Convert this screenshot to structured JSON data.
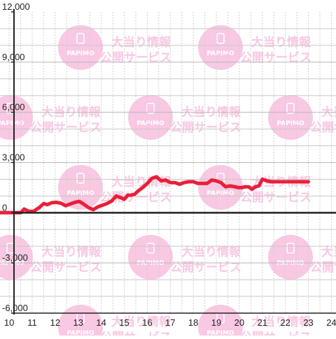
{
  "watermark": {
    "line1": "大当り情報",
    "line2": "公開サービス",
    "badge_text": "PAPIMO",
    "color": "#f9c8e2"
  },
  "colors": {
    "series": "#e8203a",
    "axis": "#222222",
    "grid_major": "#c8c8c8",
    "grid_minor": "#d0d0d0",
    "background": "#ffffff"
  },
  "chart_data": {
    "type": "line",
    "title": "",
    "xlabel": "",
    "ylabel": "",
    "xlim": [
      9.6,
      24.2
    ],
    "ylim": [
      -6000,
      12000
    ],
    "x_ticks": [
      10,
      11,
      12,
      13,
      14,
      15,
      16,
      17,
      18,
      19,
      20,
      21,
      22,
      23,
      24
    ],
    "x_tick_labels": [
      "10",
      "11",
      "12",
      "13",
      "14",
      "15",
      "16",
      "17",
      "18",
      "19",
      "20",
      "21",
      "22",
      "23",
      "24"
    ],
    "y_ticks": [
      -6000,
      -3000,
      0,
      3000,
      6000,
      9000,
      12000
    ],
    "y_tick_labels": [
      "-6,000",
      "-3,000",
      "0",
      "3,000",
      "6,000",
      "9,000",
      "12,000"
    ],
    "grid": true,
    "series": [
      {
        "x": [
          9.6,
          10.0,
          10.2,
          10.35,
          10.5,
          10.65,
          10.85,
          11.05,
          11.3,
          11.5,
          11.65,
          11.85,
          12.05,
          12.25,
          12.45,
          12.65,
          12.85,
          13.05,
          13.25,
          13.45,
          13.65,
          13.85,
          14.05,
          14.25,
          14.45,
          14.65,
          14.85,
          15.0,
          15.15,
          15.3,
          15.45,
          15.6,
          15.8,
          16.0,
          16.2,
          16.4,
          16.6,
          16.8,
          17.0,
          17.2,
          17.4,
          17.6,
          17.8,
          18.0,
          18.2,
          18.4,
          18.6,
          18.8,
          19.0,
          19.2,
          19.4,
          19.6,
          19.8,
          19.95,
          20.1,
          20.25,
          20.4,
          20.55,
          20.7,
          20.85,
          21.0,
          21.2,
          21.4,
          21.6,
          21.8,
          22.0,
          22.1,
          22.25,
          22.4,
          22.6,
          22.8,
          23.0
        ],
        "y": [
          0,
          0,
          0,
          0,
          0,
          220,
          80,
          80,
          300,
          550,
          480,
          600,
          620,
          570,
          420,
          520,
          620,
          680,
          500,
          300,
          180,
          350,
          450,
          550,
          700,
          1000,
          900,
          800,
          1050,
          1050,
          1100,
          1300,
          1500,
          1750,
          2050,
          2150,
          1900,
          1950,
          1800,
          1800,
          1700,
          1800,
          1850,
          1850,
          1750,
          1750,
          1750,
          1950,
          1900,
          1800,
          1550,
          1600,
          1550,
          1500,
          1500,
          1550,
          1550,
          1400,
          1550,
          1600,
          2000,
          1900,
          1850,
          1850,
          1850,
          1850,
          1850,
          1850,
          1850,
          1850,
          1850,
          1850
        ]
      }
    ]
  }
}
